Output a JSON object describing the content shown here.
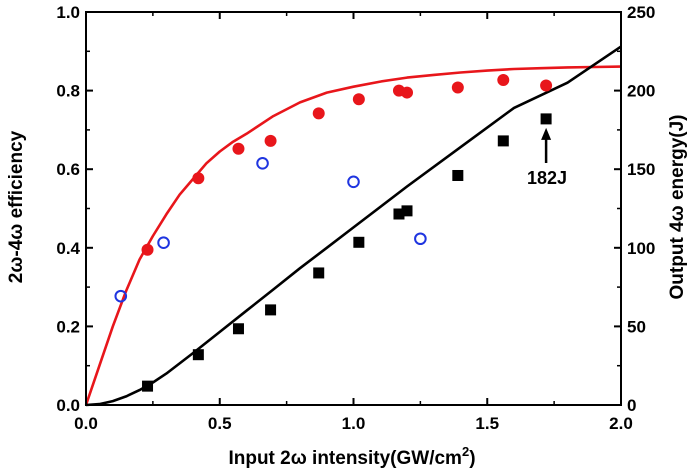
{
  "chart_data": {
    "type": "scatter",
    "xlabel": "Input 2ω intensity(GW/cm",
    "xlabel_sup": "2",
    "xlabel_close": ")",
    "ylabel_left": "2ω-4ω efficiency",
    "ylabel_right": "Output 4ω energy(J)",
    "xlim": [
      0.0,
      2.0
    ],
    "ylim_left": [
      0.0,
      1.0
    ],
    "ylim_right": [
      0,
      250
    ],
    "x_ticks": [
      "0.0",
      "0.5",
      "1.0",
      "1.5",
      "2.0"
    ],
    "y_left_ticks": [
      "0.0",
      "0.2",
      "0.4",
      "0.6",
      "0.8",
      "1.0"
    ],
    "y_right_ticks": [
      "0",
      "50",
      "100",
      "150",
      "200",
      "250"
    ],
    "annotation": {
      "text": "182J",
      "x": 1.72,
      "y": 182
    },
    "series": [
      {
        "name": "efficiency-model",
        "kind": "line",
        "axis": "left",
        "color": "#e8161b",
        "x": [
          0.0,
          0.05,
          0.1,
          0.15,
          0.2,
          0.25,
          0.3,
          0.35,
          0.4,
          0.45,
          0.5,
          0.55,
          0.6,
          0.7,
          0.8,
          0.9,
          1.0,
          1.1,
          1.2,
          1.3,
          1.4,
          1.5,
          1.6,
          1.7,
          1.8,
          1.9,
          2.0
        ],
        "y": [
          0.0,
          0.1,
          0.2,
          0.29,
          0.37,
          0.43,
          0.485,
          0.535,
          0.575,
          0.615,
          0.645,
          0.67,
          0.69,
          0.735,
          0.77,
          0.795,
          0.81,
          0.823,
          0.833,
          0.84,
          0.846,
          0.851,
          0.855,
          0.857,
          0.859,
          0.86,
          0.861
        ]
      },
      {
        "name": "efficiency-measured",
        "kind": "filled-circle",
        "axis": "left",
        "color": "#e8161b",
        "x": [
          0.23,
          0.42,
          0.57,
          0.69,
          0.87,
          1.02,
          1.17,
          1.2,
          1.39,
          1.56,
          1.72
        ],
        "y": [
          0.395,
          0.577,
          0.652,
          0.672,
          0.742,
          0.778,
          0.8,
          0.795,
          0.808,
          0.827,
          0.813
        ]
      },
      {
        "name": "efficiency-open",
        "kind": "open-circle",
        "axis": "left",
        "color": "#1f35e0",
        "x": [
          0.13,
          0.29,
          0.66,
          1.0,
          1.25
        ],
        "y": [
          0.277,
          0.413,
          0.615,
          0.568,
          0.423
        ]
      },
      {
        "name": "energy-model",
        "kind": "line",
        "axis": "right",
        "color": "#000000",
        "x": [
          0.0,
          0.05,
          0.1,
          0.15,
          0.2,
          0.25,
          0.3,
          0.4,
          0.5,
          0.6,
          0.7,
          0.8,
          0.9,
          1.0,
          1.2,
          1.4,
          1.6,
          1.8,
          2.0
        ],
        "y": [
          0,
          0.6,
          2.5,
          5.5,
          9.5,
          14.3,
          20,
          33,
          46.5,
          60,
          73.5,
          87,
          100,
          113,
          139,
          164,
          189,
          205,
          228
        ]
      },
      {
        "name": "energy-measured",
        "kind": "filled-square",
        "axis": "right",
        "color": "#000000",
        "x": [
          0.23,
          0.42,
          0.57,
          0.69,
          0.87,
          1.02,
          1.17,
          1.2,
          1.39,
          1.56,
          1.72
        ],
        "y": [
          12,
          32,
          48.5,
          60.5,
          84,
          103.5,
          121.5,
          123.5,
          146,
          168,
          182
        ]
      }
    ]
  }
}
